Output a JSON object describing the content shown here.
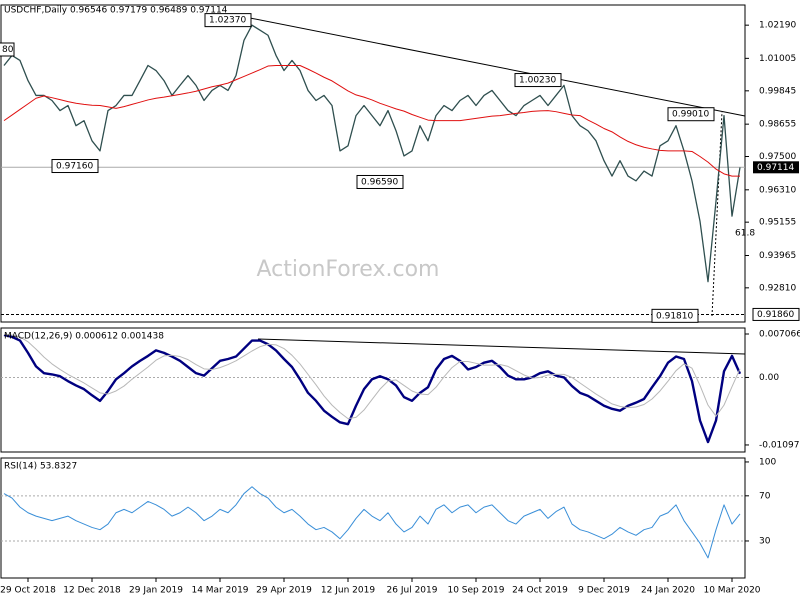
{
  "chart_data": [
    {
      "type": "line",
      "title": "USDCHF,Daily  0.96546 0.97179 0.96489 0.97114",
      "watermark": "ActionForex.com",
      "ylim": [
        0.9159,
        1.0291
      ],
      "yticks": [
        {
          "value": 1.0219,
          "label": "1.02190"
        },
        {
          "value": 1.01005,
          "label": "1.01005"
        },
        {
          "value": 0.99845,
          "label": "0.99845"
        },
        {
          "value": 0.98655,
          "label": "0.98655"
        },
        {
          "value": 0.975,
          "label": "0.97500"
        },
        {
          "value": 0.9631,
          "label": "0.96310"
        },
        {
          "value": 0.95155,
          "label": "0.95155"
        },
        {
          "value": 0.93965,
          "label": "0.93965"
        },
        {
          "value": 0.9281,
          "label": "0.92810"
        }
      ],
      "current_price": {
        "value": 0.97114,
        "label": "0.97114"
      },
      "support_level": {
        "value": 0.9186,
        "label": "0.91860"
      },
      "annotations": [
        {
          "value": 1.0237,
          "label": "1.02370"
        },
        {
          "value": 1.0023,
          "label": "1.00230"
        },
        {
          "value": 0.9901,
          "label": "0.99010"
        },
        {
          "value": 0.9716,
          "label": "0.97160"
        },
        {
          "value": 0.9659,
          "label": "0.96590"
        },
        {
          "value": 0.9181,
          "label": "0.91810"
        }
      ],
      "cut_label": "80",
      "fib_label": 61.8,
      "series": [
        {
          "name": "USDCHF",
          "color": "#2f4f4f",
          "width": 1.3,
          "values": [
            1.0075,
            1.0111,
            1.0093,
            1.0021,
            0.9968,
            0.9968,
            0.995,
            0.9914,
            0.9932,
            0.986,
            0.9878,
            0.9806,
            0.977,
            0.9914,
            0.9932,
            0.9968,
            0.9968,
            1.0021,
            1.0075,
            1.0057,
            1.0021,
            0.9968,
            1.0004,
            1.0039,
            1.0004,
            0.995,
            0.9986,
            1.0004,
            0.9986,
            1.0039,
            1.0165,
            1.0219,
            1.0201,
            1.0183,
            1.0111,
            1.0057,
            1.0093,
            1.0057,
            0.9986,
            0.995,
            0.9968,
            0.9932,
            0.977,
            0.9788,
            0.9896,
            0.9932,
            0.9896,
            0.986,
            0.9914,
            0.9842,
            0.9752,
            0.977,
            0.986,
            0.9806,
            0.9896,
            0.9932,
            0.9914,
            0.995,
            0.9968,
            0.9932,
            0.9968,
            0.9986,
            0.995,
            0.9914,
            0.9896,
            0.9932,
            0.995,
            0.9968,
            0.9932,
            0.9968,
            1.0004,
            0.9896,
            0.986,
            0.9842,
            0.9806,
            0.9735,
            0.968,
            0.9735,
            0.968,
            0.9663,
            0.9698,
            0.968,
            0.9788,
            0.9806,
            0.986,
            0.977,
            0.9663,
            0.9519,
            0.9303,
            0.959,
            0.9896,
            0.9537,
            0.9711
          ]
        },
        {
          "name": "MA",
          "color": "#e01010",
          "width": 1,
          "values": [
            0.9878,
            0.9898,
            0.9918,
            0.9938,
            0.9958,
            0.9966,
            0.996,
            0.9953,
            0.9946,
            0.994,
            0.9936,
            0.9933,
            0.9932,
            0.9927,
            0.9922,
            0.9928,
            0.9936,
            0.9944,
            0.9952,
            0.9958,
            0.9962,
            0.9967,
            0.9972,
            0.9977,
            0.9983,
            0.9991,
            0.9999,
            1.0005,
            1.0012,
            1.0024,
            1.0036,
            1.0048,
            1.006,
            1.0073,
            1.0075,
            1.0075,
            1.0075,
            1.0075,
            1.0062,
            1.0048,
            1.0033,
            1.002,
            1.0002,
            0.9984,
            0.997,
            0.9962,
            0.9952,
            0.994,
            0.993,
            0.992,
            0.9912,
            0.99,
            0.989,
            0.988,
            0.9878,
            0.9878,
            0.9878,
            0.9878,
            0.9882,
            0.9886,
            0.989,
            0.9894,
            0.9896,
            0.99,
            0.9904,
            0.9907,
            0.9911,
            0.9913,
            0.9914,
            0.991,
            0.9904,
            0.9898,
            0.9896,
            0.988,
            0.9866,
            0.985,
            0.9838,
            0.982,
            0.9804,
            0.9792,
            0.9783,
            0.9777,
            0.9772,
            0.977,
            0.977,
            0.977,
            0.9768,
            0.975,
            0.973,
            0.9705,
            0.9688,
            0.968,
            0.968
          ]
        }
      ]
    },
    {
      "type": "line",
      "title": "MACD(12,26,9) 0.000612 0.001438",
      "ylim": [
        -0.01212,
        0.00804
      ],
      "yticks": [
        0.007066,
        {
          "value": 0,
          "label": "0.00"
        },
        -0.010975
      ],
      "levels": [
        0
      ],
      "series": [
        {
          "name": "MACD",
          "color": "#000080",
          "width": 2.4,
          "values": [
            0.0069,
            0.0066,
            0.006,
            0.004,
            0.0018,
            0.0007,
            0.0005,
            0.0002,
            -0.0006,
            -0.0013,
            -0.0019,
            -0.0029,
            -0.0038,
            -0.0022,
            -0.0003,
            0.0007,
            0.0018,
            0.0027,
            0.0035,
            0.0044,
            0.004,
            0.0034,
            0.0027,
            0.0017,
            0.0007,
            0.0003,
            0.0015,
            0.0027,
            0.003,
            0.0034,
            0.0047,
            0.006,
            0.006,
            0.0054,
            0.0044,
            0.003,
            0.0017,
            -0.0003,
            -0.0025,
            -0.0038,
            -0.0054,
            -0.0064,
            -0.0073,
            -0.0076,
            -0.0046,
            -0.0019,
            -0.0003,
            0.0002,
            -0.0003,
            -0.0013,
            -0.0032,
            -0.0038,
            -0.0025,
            -0.0016,
            0.0013,
            0.003,
            0.0035,
            0.0027,
            0.0013,
            0.0017,
            0.0024,
            0.0027,
            0.0017,
            0.0003,
            -0.0003,
            -0.0003,
            0,
            0.0007,
            0.001,
            0.0003,
            0,
            -0.0014,
            -0.0025,
            -0.003,
            -0.0038,
            -0.0046,
            -0.0051,
            -0.0054,
            -0.0046,
            -0.0041,
            -0.0035,
            -0.0016,
            0.0002,
            0.0024,
            0.0034,
            0.003,
            -0.0006,
            -0.007,
            -0.0105,
            -0.007,
            0.001,
            0.0035,
            0.0006
          ]
        },
        {
          "name": "Signal",
          "color": "#b8b8b8",
          "width": 1,
          "values": [
            0.007,
            0.0069,
            0.0066,
            0.0058,
            0.0046,
            0.0033,
            0.0022,
            0.0013,
            0.0005,
            -0.0002,
            -0.0009,
            -0.0017,
            -0.0025,
            -0.0027,
            -0.0022,
            -0.0014,
            -0.0003,
            0.0007,
            0.0017,
            0.0028,
            0.0035,
            0.0036,
            0.0034,
            0.0029,
            0.0021,
            0.0014,
            0.0013,
            0.0016,
            0.0021,
            0.0027,
            0.0035,
            0.0043,
            0.005,
            0.0054,
            0.0053,
            0.0047,
            0.0036,
            0.0022,
            0.0005,
            -0.0012,
            -0.003,
            -0.0045,
            -0.0057,
            -0.0067,
            -0.0065,
            -0.0053,
            -0.0036,
            -0.0019,
            -0.0006,
            -0.0004,
            -0.0013,
            -0.0022,
            -0.0027,
            -0.0028,
            -0.0016,
            0.0001,
            0.0016,
            0.0026,
            0.0026,
            0.0023,
            0.002,
            0.002,
            0.0021,
            0.0018,
            0.0011,
            0.0004,
            -0.0001,
            0,
            0.0004,
            0.0005,
            0.0005,
            0,
            -0.0009,
            -0.0018,
            -0.0027,
            -0.0035,
            -0.0043,
            -0.0047,
            -0.0049,
            -0.0048,
            -0.0044,
            -0.0035,
            -0.0022,
            -0.0006,
            0.0011,
            0.0022,
            0.0015,
            -0.0013,
            -0.0045,
            -0.0063,
            -0.0045,
            -0.0015,
            0.0014
          ]
        }
      ]
    },
    {
      "type": "line",
      "title": "RSI(14) 53.8327",
      "ylim": [
        -2.8,
        103.5
      ],
      "yticks": [
        100,
        70,
        30
      ],
      "levels": [
        70,
        30
      ],
      "categories": [
        null,
        null,
        null,
        "29 Oct 2018",
        null,
        null,
        null,
        null,
        null,
        null,
        null,
        "12 Dec 2018",
        null,
        null,
        null,
        null,
        null,
        null,
        null,
        "29 Jan 2019",
        null,
        null,
        null,
        null,
        null,
        null,
        null,
        "14 Mar 2019",
        null,
        null,
        null,
        null,
        null,
        null,
        null,
        "29 Apr 2019",
        null,
        null,
        null,
        null,
        null,
        null,
        null,
        "12 Jun 2019",
        null,
        null,
        null,
        null,
        null,
        null,
        null,
        "26 Jul 2019",
        null,
        null,
        null,
        null,
        null,
        null,
        null,
        "10 Sep 2019",
        null,
        null,
        null,
        null,
        null,
        null,
        null,
        "24 Oct 2019",
        null,
        null,
        null,
        null,
        null,
        null,
        null,
        "9 Dec 2019",
        null,
        null,
        null,
        null,
        null,
        null,
        null,
        "24 Jan 2020",
        null,
        null,
        null,
        null,
        null,
        null,
        null,
        "10 Mar 2020",
        null
      ],
      "series": [
        {
          "name": "RSI",
          "color": "#3a8fd8",
          "width": 1,
          "values": [
            72,
            68,
            60,
            55,
            52,
            50,
            48,
            50,
            52,
            48,
            45,
            42,
            40,
            45,
            55,
            58,
            55,
            60,
            65,
            62,
            58,
            52,
            55,
            60,
            55,
            48,
            52,
            58,
            55,
            62,
            72,
            78,
            72,
            68,
            60,
            55,
            58,
            52,
            45,
            40,
            42,
            38,
            32,
            40,
            50,
            58,
            52,
            48,
            55,
            45,
            38,
            42,
            52,
            45,
            58,
            62,
            55,
            60,
            62,
            55,
            60,
            62,
            55,
            48,
            45,
            52,
            55,
            58,
            50,
            56,
            60,
            45,
            40,
            38,
            35,
            32,
            36,
            42,
            38,
            35,
            40,
            42,
            52,
            55,
            62,
            48,
            38,
            28,
            15,
            40,
            62,
            45,
            54
          ]
        }
      ]
    }
  ]
}
